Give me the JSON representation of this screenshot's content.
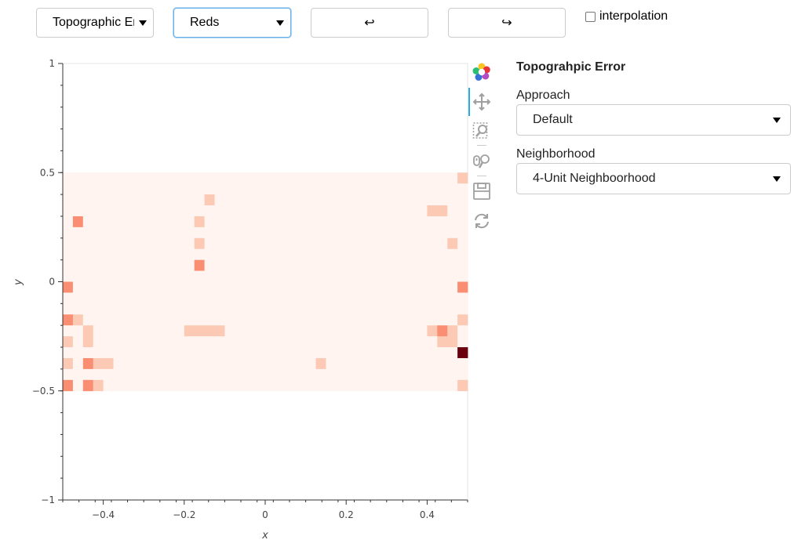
{
  "toolbar": {
    "metric_select": "Topographic Error",
    "colormap_select": "Reds",
    "undo_label": "↩",
    "redo_label": "↪",
    "interpolation_label": "interpolation",
    "interpolation_checked": false
  },
  "side_panel": {
    "title": "Topograhpic Error",
    "approach_label": "Approach",
    "approach_value": "Default",
    "neighborhood_label": "Neighborhood",
    "neighborhood_value": "4-Unit Neighboorhood"
  },
  "plot_tools": [
    "bokeh-logo-icon",
    "pan-icon",
    "box-zoom-icon",
    "wheel-zoom-icon",
    "save-icon",
    "reset-icon"
  ],
  "chart_data": {
    "type": "heatmap",
    "xlabel": "x",
    "ylabel": "y",
    "xlim": [
      -0.5,
      0.5
    ],
    "ylim": [
      -1,
      1
    ],
    "extent": {
      "x": [
        -0.5,
        0.5
      ],
      "y": [
        -0.5,
        0.5
      ]
    },
    "grid_shape": [
      20,
      40
    ],
    "x_ticks": [
      "−0.4",
      "−0.2",
      "0",
      "0.2",
      "0.4"
    ],
    "y_ticks": [
      "1",
      "0.5",
      "0",
      "−0.5",
      "−1"
    ],
    "colormap": "Reds",
    "colors": {
      "low": "#fff4f0",
      "l1": "#fcc9b5",
      "l2": "#fa8e72",
      "l3": "#f34935",
      "max": "#6a000d"
    },
    "cells_row_top_to_bottom": [
      "0000000000000000000000000000000000000001",
      "0000000000000000000000000000000000000000",
      "0000000000000010000000000000000000000000",
      "0000000000000000000000000000000000001100",
      "0200000000000100000000000000000000000000",
      "0000000000000000000000000000000000000000",
      "0000000000000100000000000000000000000010",
      "0000000000000000000000000000000000000000",
      "0000000000000200000000000000000000000000",
      "0000000000000000000000000000000000000000",
      "2000000000000000000000000000000000000002",
      "0000000000000000000000000000000000000000",
      "0000000000000000000000000000000000000000",
      "2100000000000000000000000000000000000001",
      "0010000000001111000000000000000000001210",
      "1010000000000000000000000000000000000110",
      "0000000000000000000000000000000000000004",
      "1021100000000000000000000100000000000000",
      "0000000000000000000000000000000000000000",
      "2021000000000000000000000000000000000001"
    ]
  }
}
